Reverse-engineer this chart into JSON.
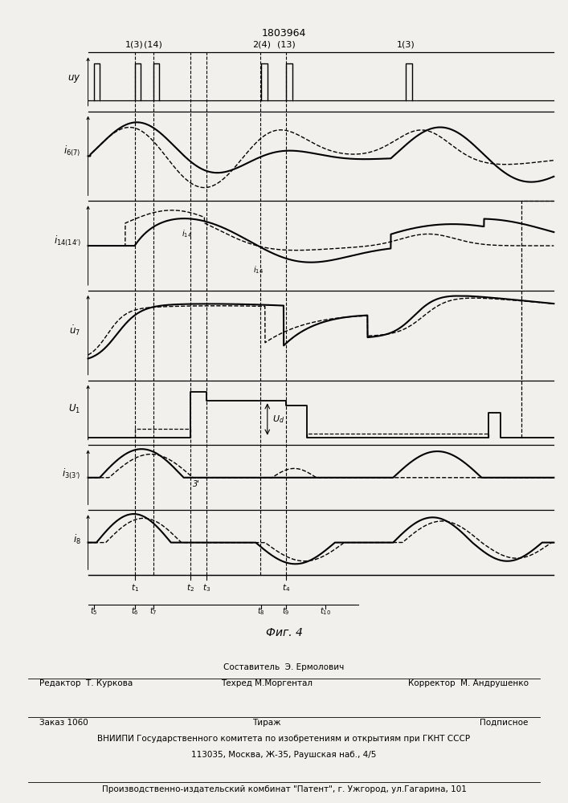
{
  "title": "1803964",
  "fig_caption": "Фиг. 4",
  "background_color": "#f2f0ec",
  "footer_line1": "Составитель  Э. Ермолович",
  "footer_line2_left": "Редактор  Т. Куркова",
  "footer_line2_mid": "Техред М.Моргентал",
  "footer_line2_right": "Корректор  М. Андрушенко",
  "footer_line3_left": "Заказ 1060",
  "footer_line3_mid": "Тираж",
  "footer_line3_right": "Подписное",
  "footer_line4": "ВНИИПИ Государственного комитета по изобретениям и открытиям при ГКНТ СССР",
  "footer_line5": "113035, Москва, Ж-35, Раушская наб., 4/5",
  "footer_line6": "Производственно-издательский комбинат \"Патент\", г. Ужгород, ул.Гагарина, 101"
}
